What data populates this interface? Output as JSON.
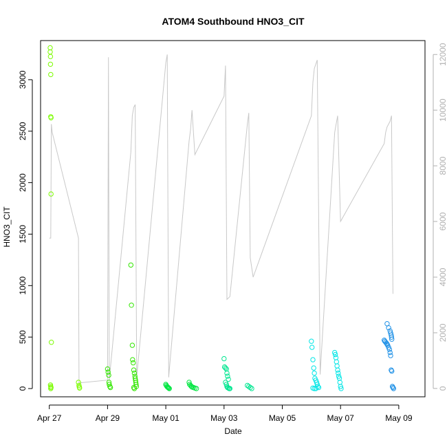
{
  "chart_data": {
    "type": "scatter",
    "title": "ATOM4 Southbound HNO3_CIT",
    "xlabel": "Date",
    "ylabel": "HNO3_CIT",
    "x_ticks": [
      "Apr 27",
      "Apr 29",
      "May 01",
      "May 03",
      "May 05",
      "May 07",
      "May 09"
    ],
    "x_tick_days": [
      27,
      29,
      31,
      33,
      35,
      37,
      39
    ],
    "xlim_days": [
      26.7,
      39.9
    ],
    "ylim": [
      -80,
      3380
    ],
    "y_ticks": [
      0,
      500,
      1000,
      1500,
      2000,
      2500,
      3000
    ],
    "y2_ticks": [
      0,
      2000,
      4000,
      6000,
      8000,
      10000,
      12000
    ],
    "y2lim": [
      -300,
      12500
    ],
    "y2_color": "#b0b0b0",
    "grid": false,
    "series": [
      {
        "color": "#7CFC00",
        "x": [
          27.03,
          27.03,
          27.04,
          27.04,
          27.05,
          27.05,
          27.06,
          27.06,
          27.07,
          27.04,
          27.05,
          27.06,
          27.05,
          28.0,
          28.02,
          28.03,
          28.04
        ],
        "y": [
          3310,
          3270,
          3225,
          3150,
          3050,
          2640,
          2630,
          1890,
          450,
          35,
          20,
          10,
          0,
          60,
          30,
          15,
          5
        ]
      },
      {
        "color": "#32E600",
        "x": [
          29.0,
          29.02,
          29.04,
          29.05,
          29.06,
          29.08,
          29.1,
          29.8,
          29.82,
          29.85,
          29.86,
          29.88,
          29.9,
          29.92,
          29.94,
          29.95,
          29.96,
          29.97,
          29.98,
          29.99,
          29.9,
          29.92
        ],
        "y": [
          190,
          160,
          130,
          60,
          40,
          20,
          10,
          1200,
          810,
          420,
          280,
          250,
          180,
          150,
          120,
          100,
          80,
          60,
          40,
          20,
          10,
          0
        ]
      },
      {
        "color": "#00E640",
        "x": [
          31.0,
          31.02,
          31.04,
          31.06,
          31.08,
          31.1,
          31.12,
          31.8,
          31.82,
          31.85,
          31.88,
          31.9,
          31.95,
          32.0,
          32.05
        ],
        "y": [
          40,
          30,
          20,
          15,
          10,
          5,
          0,
          60,
          40,
          30,
          20,
          15,
          10,
          5,
          0
        ]
      },
      {
        "color": "#00E690",
        "x": [
          33.0,
          33.02,
          33.05,
          33.08,
          33.1,
          33.12,
          33.15,
          33.05,
          33.08,
          33.1,
          33.12,
          33.15,
          33.18,
          33.2,
          33.8,
          33.85,
          33.9,
          33.95
        ],
        "y": [
          290,
          210,
          200,
          190,
          150,
          120,
          90,
          60,
          40,
          20,
          10,
          5,
          0,
          0,
          30,
          20,
          10,
          0
        ]
      },
      {
        "color": "#00E6E6",
        "x": [
          36.0,
          36.02,
          36.05,
          36.08,
          36.1,
          36.12,
          36.15,
          36.18,
          36.2,
          36.22,
          36.25,
          36.05,
          36.1,
          36.15,
          36.8,
          36.82,
          36.84,
          36.86,
          36.88,
          36.9,
          36.92,
          36.94,
          36.96,
          36.98,
          37.0,
          37.02
        ],
        "y": [
          460,
          400,
          280,
          200,
          150,
          100,
          80,
          60,
          40,
          20,
          10,
          5,
          0,
          0,
          350,
          330,
          300,
          260,
          220,
          180,
          150,
          120,
          100,
          60,
          20,
          0
        ]
      },
      {
        "color": "#1E90E6",
        "x": [
          38.5,
          38.52,
          38.55,
          38.58,
          38.6,
          38.62,
          38.65,
          38.68,
          38.7,
          38.72,
          38.74,
          38.76,
          38.6,
          38.65,
          38.7,
          38.72,
          38.74,
          38.75,
          38.76,
          38.78,
          38.8,
          38.82
        ],
        "y": [
          470,
          460,
          450,
          440,
          430,
          420,
          400,
          380,
          350,
          320,
          180,
          170,
          630,
          590,
          560,
          540,
          520,
          500,
          480,
          20,
          10,
          0
        ]
      }
    ],
    "secondary_line": {
      "color": "#c8c8c8",
      "x": [
        27.0,
        27.05,
        27.07,
        27.1,
        28.0,
        28.02,
        29.0,
        29.03,
        29.06,
        29.8,
        29.85,
        29.9,
        29.95,
        30.0,
        31.0,
        31.05,
        31.1,
        31.8,
        31.85,
        31.9,
        32.0,
        33.0,
        33.05,
        33.1,
        33.2,
        33.8,
        33.85,
        33.9,
        34.0,
        36.0,
        36.05,
        36.1,
        36.2,
        36.3,
        36.8,
        36.85,
        36.9,
        37.0,
        38.5,
        38.55,
        38.6,
        38.7,
        38.75,
        38.8
      ],
      "y": [
        5400,
        5400,
        9500,
        9200,
        5400,
        200,
        300,
        11900,
        300,
        8500,
        9800,
        10100,
        10200,
        400,
        11700,
        12000,
        400,
        8900,
        9300,
        10000,
        8400,
        10500,
        11600,
        3200,
        3300,
        9500,
        9900,
        4700,
        4000,
        9800,
        11000,
        11500,
        11800,
        500,
        9200,
        9500,
        9800,
        6000,
        8800,
        9200,
        9400,
        9600,
        9800,
        3400
      ]
    }
  }
}
